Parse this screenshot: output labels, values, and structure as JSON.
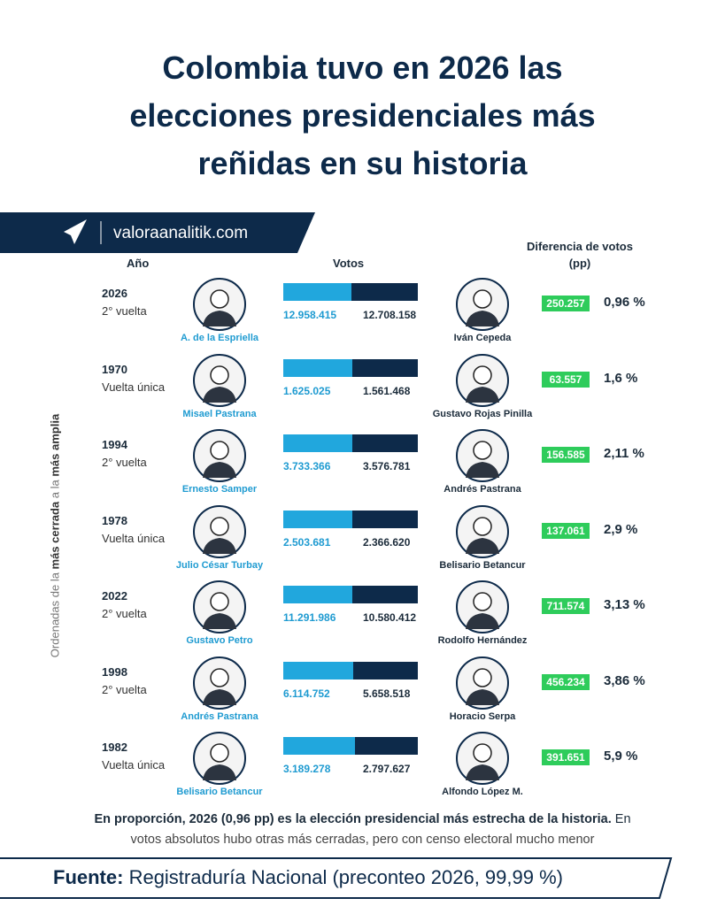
{
  "header": {
    "title_lines": [
      "Colombia tuvo en 2026 las",
      "elecciones presidenciales más",
      "reñidas en su historia"
    ],
    "site": "valoraanalitik.com"
  },
  "columns": {
    "year": "Año",
    "votes": "Votos",
    "difference": [
      "Diferencia de votos",
      "(pp)"
    ]
  },
  "side_note": [
    "Ordenadas de la ",
    "más cerrada",
    " a la ",
    "más amplia"
  ],
  "rows": [
    {
      "year": "2026",
      "round": "2° vuelta",
      "winner": "A. de la Espriella",
      "winner_votes": "12.958.415",
      "loser": "Iván Cepeda",
      "loser_votes": "12.708.158",
      "difference": "250.257",
      "pp": "0,96 %"
    },
    {
      "year": "1970",
      "round": "Vuelta única",
      "winner": "Misael Pastrana",
      "winner_votes": "1.625.025",
      "loser": "Gustavo Rojas Pinilla",
      "loser_votes": "1.561.468",
      "difference": "63.557",
      "pp": "1,6 %"
    },
    {
      "year": "1994",
      "round": "2° vuelta",
      "winner": "Ernesto Samper",
      "winner_votes": "3.733.366",
      "loser": "Andrés Pastrana",
      "loser_votes": "3.576.781",
      "difference": "156.585",
      "pp": "2,11 %"
    },
    {
      "year": "1978",
      "round": "Vuelta única",
      "winner": "Julio César Turbay",
      "winner_votes": "2.503.681",
      "loser": "Belisario Betancur",
      "loser_votes": "2.366.620",
      "difference": "137.061",
      "pp": "2,9 %"
    },
    {
      "year": "2022",
      "round": "2° vuelta",
      "winner": "Gustavo Petro",
      "winner_votes": "11.291.986",
      "loser": "Rodolfo Hernández",
      "loser_votes": "10.580.412",
      "difference": "711.574",
      "pp": "3,13 %"
    },
    {
      "year": "1998",
      "round": "2° vuelta",
      "winner": "Andrés Pastrana",
      "winner_votes": "6.114.752",
      "loser": "Horacio Serpa",
      "loser_votes": "5.658.518",
      "difference": "456.234",
      "pp": "3,86 %"
    },
    {
      "year": "1982",
      "round": "Vuelta única",
      "winner": "Belisario Betancur",
      "winner_votes": "3.189.278",
      "loser": "Alfondo López M.",
      "loser_votes": "2.797.627",
      "difference": "391.651",
      "pp": "5,9 %"
    }
  ],
  "note": {
    "line1_bold": "En proporción, 2026 (0,96 pp) es la elección presidencial más estrecha de la historia.",
    "line1_rest": " En",
    "line2": "votos absolutos hubo otras más cerradas, pero con censo electoral mucho menor"
  },
  "source": {
    "label": "Fuente:",
    "text": " Registraduría Nacional (preconteo 2026, 99,99 %)"
  }
}
